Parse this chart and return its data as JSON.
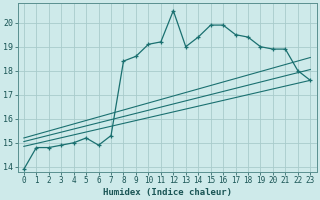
{
  "title": "",
  "xlabel": "Humidex (Indice chaleur)",
  "xlim": [
    -0.5,
    23.5
  ],
  "ylim": [
    13.8,
    20.8
  ],
  "yticks": [
    14,
    15,
    16,
    17,
    18,
    19,
    20
  ],
  "xticks": [
    0,
    1,
    2,
    3,
    4,
    5,
    6,
    7,
    8,
    9,
    10,
    11,
    12,
    13,
    14,
    15,
    16,
    17,
    18,
    19,
    20,
    21,
    22,
    23
  ],
  "bg_color": "#ceeaea",
  "grid_color": "#a8cccc",
  "line_color": "#1a7070",
  "zigzag_x": [
    0,
    1,
    2,
    3,
    4,
    5,
    6,
    7,
    8,
    9,
    10,
    11,
    12,
    13,
    14,
    15,
    16,
    17,
    18,
    19,
    20,
    21,
    22,
    23
  ],
  "zigzag_y": [
    13.9,
    14.8,
    14.8,
    14.9,
    15.0,
    15.2,
    14.9,
    15.3,
    18.4,
    18.6,
    19.1,
    19.2,
    20.5,
    19.0,
    19.4,
    19.9,
    19.9,
    19.5,
    19.4,
    19.0,
    18.9,
    18.9,
    18.0,
    17.6
  ],
  "fan_line1_x": [
    0,
    23
  ],
  "fan_line1_y": [
    14.85,
    17.6
  ],
  "fan_line2_x": [
    0,
    23
  ],
  "fan_line2_y": [
    15.05,
    18.05
  ],
  "fan_line3_x": [
    0,
    23
  ],
  "fan_line3_y": [
    15.2,
    18.55
  ]
}
